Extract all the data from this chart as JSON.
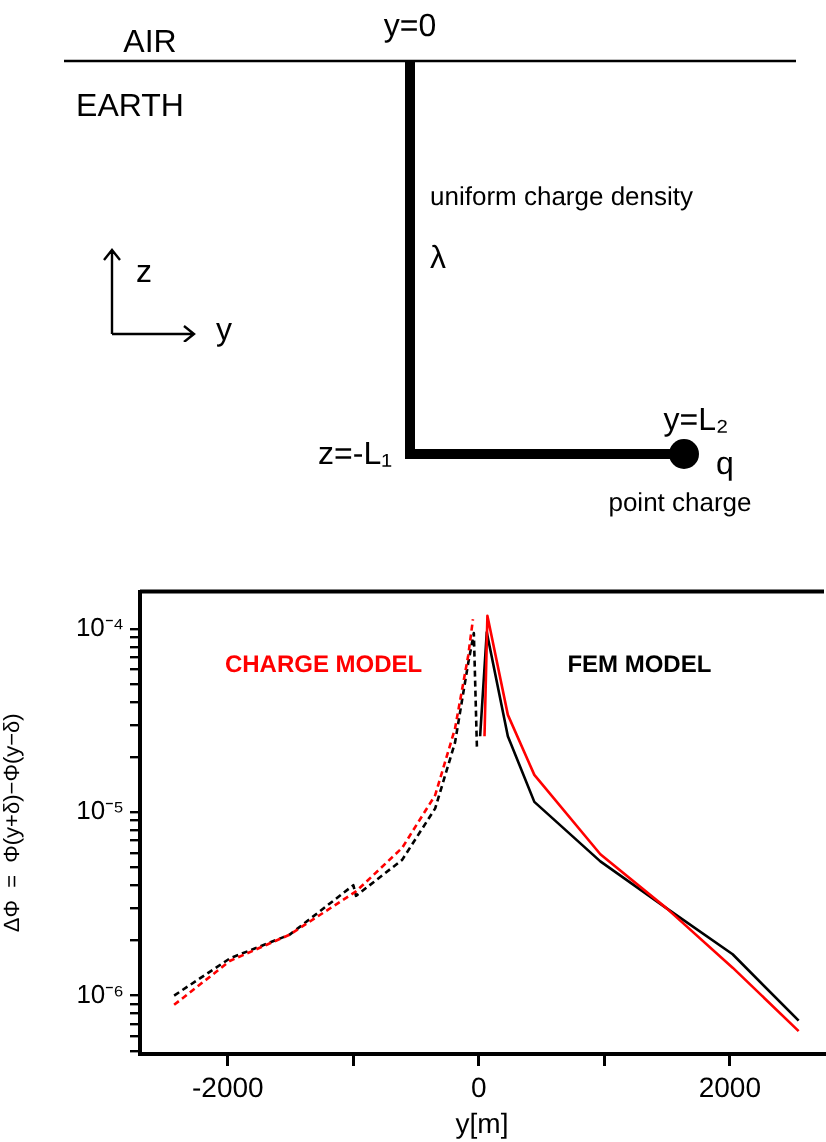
{
  "chart_data": {
    "type": "line",
    "xlabel": "y[m]",
    "ylabel": "ΔΦ  =  Φ(y+δ)−Φ(y−δ)",
    "log": "y",
    "marker": "none",
    "annotations": [
      "AIR",
      "EARTH",
      "y=0",
      "uniform charge density",
      "λ",
      "z",
      "y",
      "z=-L₁",
      "y=L₂",
      "q",
      "point charge"
    ],
    "xlim": [
      -2700,
      2750
    ],
    "xticks": [
      -2000,
      {
        "value": -1000,
        "label": null
      },
      0,
      {
        "value": 1000,
        "label": null
      },
      2000
    ],
    "ylim": [
      4.8e-07,
      0.00016
    ],
    "yticks": [
      {
        "value": 5e-07,
        "label": null
      },
      {
        "value": 6e-07,
        "label": null
      },
      {
        "value": 7e-07,
        "label": null
      },
      {
        "value": 8e-07,
        "label": null
      },
      {
        "value": 9e-07,
        "label": null
      },
      {
        "value": 1e-06,
        "label": "10⁻⁶"
      },
      {
        "value": 2e-06,
        "label": null
      },
      {
        "value": 3e-06,
        "label": null
      },
      {
        "value": 4e-06,
        "label": null
      },
      {
        "value": 5e-06,
        "label": null
      },
      {
        "value": 6e-06,
        "label": null
      },
      {
        "value": 7e-06,
        "label": null
      },
      {
        "value": 8e-06,
        "label": null
      },
      {
        "value": 9e-06,
        "label": null
      },
      {
        "value": 1e-05,
        "label": "10⁻⁵"
      },
      {
        "value": 2e-05,
        "label": null
      },
      {
        "value": 3e-05,
        "label": null
      },
      {
        "value": 4e-05,
        "label": null
      },
      {
        "value": 5e-05,
        "label": null
      },
      {
        "value": 6e-05,
        "label": null
      },
      {
        "value": 7e-05,
        "label": null
      },
      {
        "value": 8e-05,
        "label": null
      },
      {
        "value": 9e-05,
        "label": null
      },
      {
        "value": 0.0001,
        "label": "10⁻⁴"
      }
    ],
    "series": [
      {
        "name": "CHARGE MODEL",
        "color": "#ff0000",
        "line_style": "dashed",
        "x": [
          -2428,
          -1981,
          -1507,
          -979,
          -611,
          -348,
          -190,
          -85,
          -47
        ],
        "values": [
          8.9e-07,
          1.55e-06,
          2.15e-06,
          3.7e-06,
          6.4e-06,
          1.24e-05,
          2.86e-05,
          7.15e-05,
          0.000113
        ]
      },
      {
        "color": "#000000",
        "line_style": "dashed",
        "x": [
          -2428,
          -1981,
          -1507,
          -1000,
          -979,
          -611,
          -348,
          -190,
          -85,
          -40,
          -15
        ],
        "values": [
          1e-06,
          1.6e-06,
          2.15e-06,
          4e-06,
          3.5e-06,
          5.5e-06,
          1.05e-05,
          2.4e-05,
          6.5e-05,
          9.5e-05,
          2.2e-05
        ]
      },
      {
        "color": "#ff0000",
        "line_style": "solid",
        "x": [
          45,
          68,
          231,
          442,
          968,
          1494,
          2022,
          2548
        ],
        "values": [
          2.6e-05,
          0.000118,
          3.4e-05,
          1.6e-05,
          5.9e-06,
          3e-06,
          1.42e-06,
          6.4e-07
        ]
      },
      {
        "name": "FEM MODEL",
        "color": "#000000",
        "line_style": "solid",
        "x": [
          10,
          63,
          231,
          442,
          968,
          1494,
          2022,
          2548
        ],
        "values": [
          2.6e-05,
          9.6e-05,
          2.6e-05,
          1.14e-05,
          5.4e-06,
          3e-06,
          1.68e-06,
          7.3e-07
        ]
      }
    ]
  }
}
